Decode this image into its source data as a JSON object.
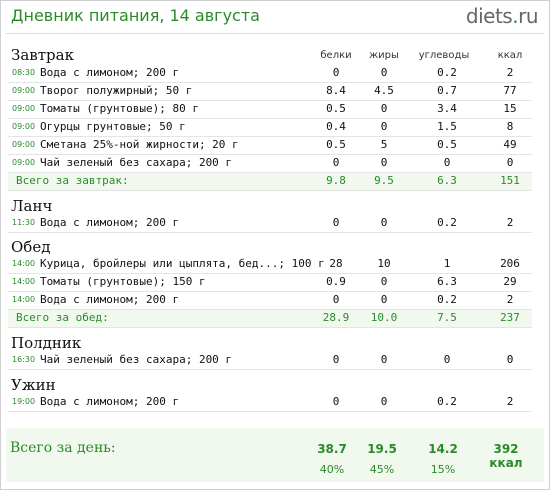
{
  "header": {
    "title": "Дневник питания, 14 августа",
    "logo_main": "diets",
    "logo_dot": ".",
    "logo_tld": "ru"
  },
  "columns": {
    "protein": "белки",
    "fat": "жиры",
    "carbs": "углеводы",
    "kcal": "ккал"
  },
  "meals": [
    {
      "name": "Завтрак",
      "items": [
        {
          "time": "08:30",
          "food": "Вода с лимоном; 200 г",
          "protein": "0",
          "fat": "0",
          "carbs": "0.2",
          "kcal": "2"
        },
        {
          "time": "09:00",
          "food": "Творог полужирный; 50 г",
          "protein": "8.4",
          "fat": "4.5",
          "carbs": "0.7",
          "kcal": "77"
        },
        {
          "time": "09:00",
          "food": "Томаты (грунтовые); 80 г",
          "protein": "0.5",
          "fat": "0",
          "carbs": "3.4",
          "kcal": "15"
        },
        {
          "time": "09:00",
          "food": "Огурцы грунтовые; 50 г",
          "protein": "0.4",
          "fat": "0",
          "carbs": "1.5",
          "kcal": "8"
        },
        {
          "time": "09:00",
          "food": "Сметана 25%-ной жирности; 20 г",
          "protein": "0.5",
          "fat": "5",
          "carbs": "0.5",
          "kcal": "49"
        },
        {
          "time": "09:00",
          "food": "Чай зеленый без сахара; 200 г",
          "protein": "0",
          "fat": "0",
          "carbs": "0",
          "kcal": "0"
        }
      ],
      "total": {
        "label": "Всего за завтрак:",
        "protein": "9.8",
        "fat": "9.5",
        "carbs": "6.3",
        "kcal": "151"
      }
    },
    {
      "name": "Ланч",
      "items": [
        {
          "time": "11:30",
          "food": "Вода с лимоном; 200 г",
          "protein": "0",
          "fat": "0",
          "carbs": "0.2",
          "kcal": "2"
        }
      ]
    },
    {
      "name": "Обед",
      "items": [
        {
          "time": "14:00",
          "food": "Курица, бройлеры или цыплята, бед...; 100 г",
          "protein": "28",
          "fat": "10",
          "carbs": "1",
          "kcal": "206"
        },
        {
          "time": "14:00",
          "food": "Томаты (грунтовые); 150 г",
          "protein": "0.9",
          "fat": "0",
          "carbs": "6.3",
          "kcal": "29"
        },
        {
          "time": "14:00",
          "food": "Вода с лимоном; 200 г",
          "protein": "0",
          "fat": "0",
          "carbs": "0.2",
          "kcal": "2"
        }
      ],
      "total": {
        "label": "Всего за обед:",
        "protein": "28.9",
        "fat": "10.0",
        "carbs": "7.5",
        "kcal": "237"
      }
    },
    {
      "name": "Полдник",
      "items": [
        {
          "time": "16:30",
          "food": "Чай зеленый без сахара; 200 г",
          "protein": "0",
          "fat": "0",
          "carbs": "0",
          "kcal": "0"
        }
      ]
    },
    {
      "name": "Ужин",
      "items": [
        {
          "time": "19:00",
          "food": "Вода с лимоном; 200 г",
          "protein": "0",
          "fat": "0",
          "carbs": "0.2",
          "kcal": "2"
        }
      ]
    }
  ],
  "day_total": {
    "label": "Всего за день:",
    "protein": "38.7",
    "fat": "19.5",
    "carbs": "14.2",
    "kcal": "392 ккал",
    "protein_pct": "40%",
    "fat_pct": "45%",
    "carbs_pct": "15%"
  }
}
